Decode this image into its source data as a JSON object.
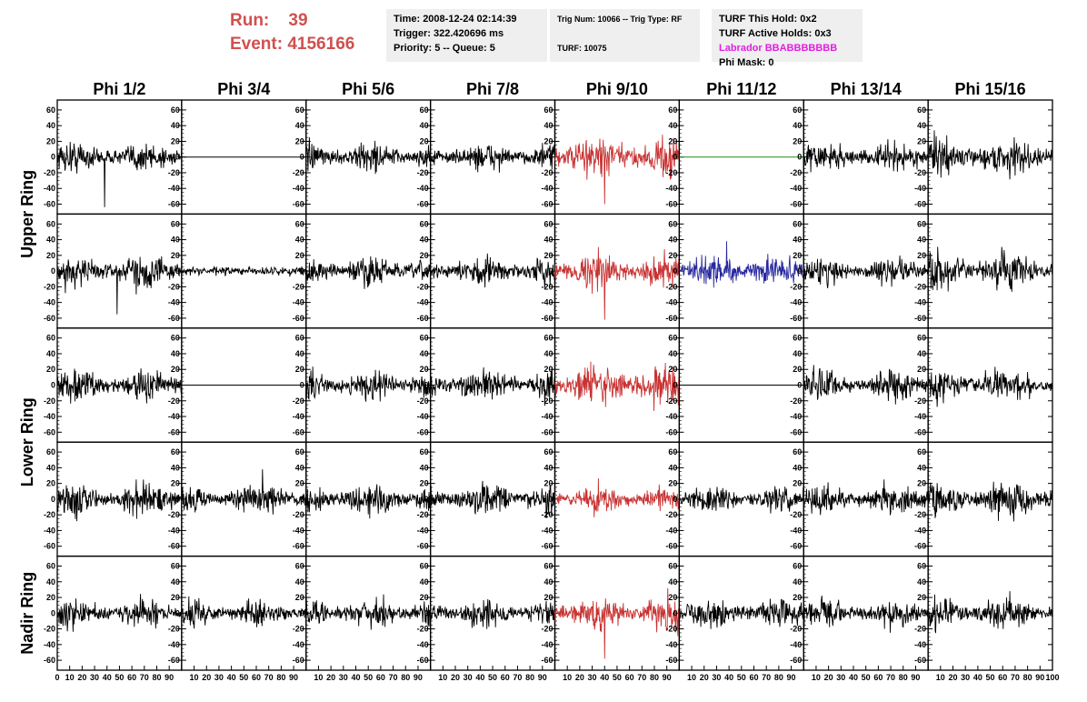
{
  "header": {
    "run_label": "Run:",
    "run_value": "39",
    "event_label": "Event:",
    "event_value": "4156166",
    "time": "Time: 2008-12-24 02:14:39",
    "trigger": "Trigger: 322.420696 ms",
    "priority": "Priority: 5 -- Queue: 5",
    "trig_num": "Trig Num: 10066 -- Trig Type: RF",
    "turf": "TURF: 10075",
    "turf_this_hold": "TURF This Hold: 0x2",
    "turf_active_holds": "TURF Active Holds: 0x3",
    "labrador": "Labrador BBABBBBBBB",
    "phi_mask": "Phi Mask: 0"
  },
  "colors": {
    "run_text": "#d05050",
    "labrador_text": "#e020e0",
    "trace_default": "#000000",
    "trace_triggered": "#c83232",
    "trace_blue": "#2828a0",
    "trace_green": "#1a8a1a",
    "info_box_bg": "#efefef"
  },
  "chart_data": {
    "type": "line",
    "columns": [
      "Phi 1/2",
      "Phi 3/4",
      "Phi 5/6",
      "Phi 7/8",
      "Phi 9/10",
      "Phi 11/12",
      "Phi 13/14",
      "Phi 15/16"
    ],
    "ring_labels": [
      {
        "text": "Upper Ring",
        "rows": [
          0,
          1
        ]
      },
      {
        "text": "Lower Ring",
        "rows": [
          2,
          3
        ]
      },
      {
        "text": "Nadir Ring",
        "rows": [
          4,
          4
        ]
      }
    ],
    "rows": 5,
    "xlim": [
      0,
      100
    ],
    "ylim": [
      -68,
      68
    ],
    "y_ticks": [
      -60,
      -40,
      -20,
      0,
      20,
      40,
      60
    ],
    "x_ticks": [
      0,
      10,
      20,
      30,
      40,
      50,
      60,
      70,
      80,
      90
    ],
    "x_tick_labels": [
      [
        "0",
        "10",
        "20",
        "30",
        "40",
        "50",
        "60",
        "70",
        "80",
        "90"
      ],
      [
        "10",
        "20",
        "30",
        "40",
        "50",
        "60",
        "70",
        "80",
        "90"
      ],
      [
        "10",
        "20",
        "30",
        "40",
        "50",
        "60",
        "70",
        "80",
        "90"
      ],
      [
        "10",
        "20",
        "30",
        "40",
        "50",
        "60",
        "70",
        "80",
        "90"
      ],
      [
        "10",
        "20",
        "30",
        "40",
        "50",
        "60",
        "70",
        "80",
        "90"
      ],
      [
        "10",
        "20",
        "30",
        "40",
        "50",
        "60",
        "70",
        "80",
        "90"
      ],
      [
        "10",
        "20",
        "30",
        "40",
        "50",
        "60",
        "70",
        "80",
        "90"
      ],
      [
        "10",
        "20",
        "30",
        "40",
        "50",
        "60",
        "70",
        "80",
        "90",
        "100"
      ]
    ],
    "panels": [
      [
        {
          "style": "noise",
          "amp": 17,
          "color": "trace_default",
          "spike": {
            "x": 38,
            "y": -64
          }
        },
        {
          "style": "flat",
          "color": "trace_default"
        },
        {
          "style": "noise",
          "amp": 16,
          "color": "trace_default"
        },
        {
          "style": "noise",
          "amp": 15,
          "color": "trace_default"
        },
        {
          "style": "noise",
          "amp": 24,
          "color": "trace_triggered",
          "spike": {
            "x": 40,
            "y": -60
          }
        },
        {
          "style": "flat",
          "color": "trace_green"
        },
        {
          "style": "noise",
          "amp": 16,
          "color": "trace_default"
        },
        {
          "style": "noise",
          "amp": 20,
          "color": "trace_default"
        }
      ],
      [
        {
          "style": "noise",
          "amp": 19,
          "color": "trace_default",
          "spike": {
            "x": 48,
            "y": -55
          }
        },
        {
          "style": "small",
          "amp": 4,
          "color": "trace_default"
        },
        {
          "style": "noise",
          "amp": 17,
          "color": "trace_default"
        },
        {
          "style": "noise",
          "amp": 16,
          "color": "trace_default"
        },
        {
          "style": "noise",
          "amp": 19,
          "color": "trace_triggered",
          "spike": {
            "x": 40,
            "y": -62
          }
        },
        {
          "style": "noise",
          "amp": 17,
          "color": "trace_blue",
          "spike": {
            "x": 38,
            "y": 38
          }
        },
        {
          "style": "noise",
          "amp": 15,
          "color": "trace_default"
        },
        {
          "style": "noise",
          "amp": 20,
          "color": "trace_default"
        }
      ],
      [
        {
          "style": "noise",
          "amp": 18,
          "color": "trace_default"
        },
        {
          "style": "flat",
          "color": "trace_default"
        },
        {
          "style": "noise",
          "amp": 17,
          "color": "trace_default"
        },
        {
          "style": "noise",
          "amp": 18,
          "color": "trace_default"
        },
        {
          "style": "noise",
          "amp": 24,
          "color": "trace_triggered"
        },
        {
          "style": "flat",
          "color": "trace_default"
        },
        {
          "style": "noise",
          "amp": 17,
          "color": "trace_default"
        },
        {
          "style": "noise",
          "amp": 19,
          "color": "trace_default"
        }
      ],
      [
        {
          "style": "noise",
          "amp": 17,
          "color": "trace_default"
        },
        {
          "style": "noise",
          "amp": 16,
          "color": "trace_default",
          "spike": {
            "x": 65,
            "y": 38
          }
        },
        {
          "style": "noise",
          "amp": 17,
          "color": "trace_default"
        },
        {
          "style": "noise",
          "amp": 19,
          "color": "trace_default"
        },
        {
          "style": "noise",
          "amp": 15,
          "color": "trace_triggered"
        },
        {
          "style": "noise",
          "amp": 14,
          "color": "trace_default"
        },
        {
          "style": "noise",
          "amp": 17,
          "color": "trace_default"
        },
        {
          "style": "noise",
          "amp": 20,
          "color": "trace_default"
        }
      ],
      [
        {
          "style": "noise",
          "amp": 16,
          "color": "trace_default"
        },
        {
          "style": "noise",
          "amp": 14,
          "color": "trace_default"
        },
        {
          "style": "noise",
          "amp": 17,
          "color": "trace_default"
        },
        {
          "style": "noise",
          "amp": 16,
          "color": "trace_default"
        },
        {
          "style": "noise",
          "amp": 20,
          "color": "trace_triggered",
          "spike": {
            "x": 40,
            "y": -58
          }
        },
        {
          "style": "noise",
          "amp": 17,
          "color": "trace_default"
        },
        {
          "style": "noise",
          "amp": 16,
          "color": "trace_default"
        },
        {
          "style": "noise",
          "amp": 17,
          "color": "trace_default"
        }
      ]
    ]
  }
}
